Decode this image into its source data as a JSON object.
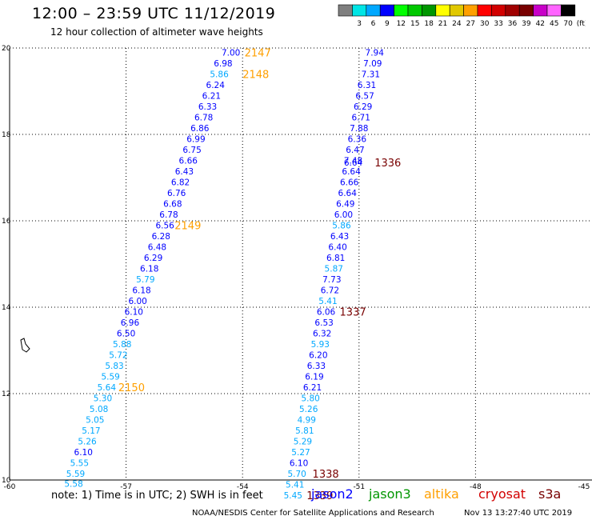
{
  "header": {
    "title": "12:00 – 23:59 UTC 11/12/2019",
    "subtitle": "12 hour collection of altimeter wave heights"
  },
  "color_scale": {
    "unit": "(ft)",
    "bins": [
      {
        "label": "",
        "color": "#7f7f7f"
      },
      {
        "label": "3",
        "color": "#00e5e5"
      },
      {
        "label": "6",
        "color": "#00a8ff"
      },
      {
        "label": "9",
        "color": "#0000ff"
      },
      {
        "label": "12",
        "color": "#00ff00"
      },
      {
        "label": "15",
        "color": "#00c800"
      },
      {
        "label": "18",
        "color": "#009600"
      },
      {
        "label": "21",
        "color": "#ffff00"
      },
      {
        "label": "24",
        "color": "#e1c800"
      },
      {
        "label": "27",
        "color": "#ffa000"
      },
      {
        "label": "30",
        "color": "#ff0000"
      },
      {
        "label": "33",
        "color": "#d20000"
      },
      {
        "label": "36",
        "color": "#a00000"
      },
      {
        "label": "39",
        "color": "#780000"
      },
      {
        "label": "42",
        "color": "#c800c8"
      },
      {
        "label": "45",
        "color": "#ff64ff"
      },
      {
        "label": "70",
        "color": "#000000"
      }
    ]
  },
  "chart_data": {
    "type": "scatter",
    "title": "12:00 – 23:59 UTC 11/12/2019",
    "subtitle": "12 hour collection of altimeter wave heights",
    "xlim": [
      -60,
      -45
    ],
    "ylim": [
      10,
      20
    ],
    "xticks": [
      -60,
      -57,
      -54,
      -51,
      -48,
      -45
    ],
    "yticks": [
      10,
      12,
      14,
      16,
      18,
      20
    ],
    "grid": true,
    "swh_unit": "ft",
    "tracks": [
      {
        "name": "A",
        "points": [
          {
            "lon": -54.3,
            "lat": 19.9,
            "swh": "7.00"
          },
          {
            "lon": -54.5,
            "lat": 19.65,
            "swh": "6.98"
          },
          {
            "lon": -54.6,
            "lat": 19.4,
            "swh": "5.86"
          },
          {
            "lon": -54.7,
            "lat": 19.15,
            "swh": "6.24"
          },
          {
            "lon": -54.8,
            "lat": 18.9,
            "swh": "6.21"
          },
          {
            "lon": -54.9,
            "lat": 18.65,
            "swh": "6.33"
          },
          {
            "lon": -55.0,
            "lat": 18.4,
            "swh": "6.78"
          },
          {
            "lon": -55.1,
            "lat": 18.15,
            "swh": "6.86"
          },
          {
            "lon": -55.2,
            "lat": 17.9,
            "swh": "6.99"
          },
          {
            "lon": -55.3,
            "lat": 17.65,
            "swh": "6.75"
          },
          {
            "lon": -55.4,
            "lat": 17.4,
            "swh": "6.66"
          },
          {
            "lon": -55.5,
            "lat": 17.15,
            "swh": "6.43"
          },
          {
            "lon": -55.6,
            "lat": 16.9,
            "swh": "6.82"
          },
          {
            "lon": -55.7,
            "lat": 16.65,
            "swh": "6.76"
          },
          {
            "lon": -55.8,
            "lat": 16.4,
            "swh": "6.68"
          },
          {
            "lon": -55.9,
            "lat": 16.15,
            "swh": "6.78"
          },
          {
            "lon": -56.0,
            "lat": 15.9,
            "swh": "6.56"
          },
          {
            "lon": -56.1,
            "lat": 15.65,
            "swh": "6.28"
          },
          {
            "lon": -56.2,
            "lat": 15.4,
            "swh": "6.48"
          },
          {
            "lon": -56.3,
            "lat": 15.15,
            "swh": "6.29"
          },
          {
            "lon": -56.4,
            "lat": 14.9,
            "swh": "6.18"
          },
          {
            "lon": -56.5,
            "lat": 14.65,
            "swh": "5.79"
          },
          {
            "lon": -56.6,
            "lat": 14.4,
            "swh": "6.18"
          },
          {
            "lon": -56.7,
            "lat": 14.15,
            "swh": "6.00"
          },
          {
            "lon": -56.8,
            "lat": 13.9,
            "swh": "6.10"
          },
          {
            "lon": -56.9,
            "lat": 13.65,
            "swh": "6.96"
          },
          {
            "lon": -57.0,
            "lat": 13.4,
            "swh": "6.50"
          },
          {
            "lon": -57.1,
            "lat": 13.15,
            "swh": "5.88"
          },
          {
            "lon": -57.2,
            "lat": 12.9,
            "swh": "5.72"
          },
          {
            "lon": -57.3,
            "lat": 12.65,
            "swh": "5.83"
          },
          {
            "lon": -57.4,
            "lat": 12.4,
            "swh": "5.59"
          },
          {
            "lon": -57.5,
            "lat": 12.15,
            "swh": "5.64"
          },
          {
            "lon": -57.6,
            "lat": 11.9,
            "swh": "5.30"
          },
          {
            "lon": -57.7,
            "lat": 11.65,
            "swh": "5.08"
          },
          {
            "lon": -57.8,
            "lat": 11.4,
            "swh": "5.05"
          },
          {
            "lon": -57.9,
            "lat": 11.15,
            "swh": "5.17"
          },
          {
            "lon": -58.0,
            "lat": 10.9,
            "swh": "5.26"
          },
          {
            "lon": -58.1,
            "lat": 10.65,
            "swh": "6.10"
          },
          {
            "lon": -58.2,
            "lat": 10.4,
            "swh": "5.55"
          },
          {
            "lon": -58.3,
            "lat": 10.15,
            "swh": "5.59"
          },
          {
            "lon": -58.35,
            "lat": 9.92,
            "swh": "5.58"
          }
        ]
      },
      {
        "name": "B",
        "points": [
          {
            "lon": -50.6,
            "lat": 19.9,
            "swh": "7.94"
          },
          {
            "lon": -50.65,
            "lat": 19.65,
            "swh": "7.09"
          },
          {
            "lon": -50.7,
            "lat": 19.4,
            "swh": "7.31"
          },
          {
            "lon": -50.8,
            "lat": 19.15,
            "swh": "6.31"
          },
          {
            "lon": -50.85,
            "lat": 18.9,
            "swh": "6.57"
          },
          {
            "lon": -50.9,
            "lat": 18.65,
            "swh": "6.29"
          },
          {
            "lon": -50.95,
            "lat": 18.4,
            "swh": "6.71"
          },
          {
            "lon": -51.0,
            "lat": 18.15,
            "swh": "7.88"
          },
          {
            "lon": -51.05,
            "lat": 17.9,
            "swh": "6.36"
          },
          {
            "lon": -51.1,
            "lat": 17.65,
            "swh": "6.47"
          },
          {
            "lon": -51.15,
            "lat": 17.4,
            "swh": "7.48"
          },
          {
            "lon": -51.15,
            "lat": 17.35,
            "swh": "6.64"
          },
          {
            "lon": -51.2,
            "lat": 17.15,
            "swh": "6.64"
          },
          {
            "lon": -51.25,
            "lat": 16.9,
            "swh": "6.66"
          },
          {
            "lon": -51.3,
            "lat": 16.65,
            "swh": "6.64"
          },
          {
            "lon": -51.35,
            "lat": 16.4,
            "swh": "6.49"
          },
          {
            "lon": -51.4,
            "lat": 16.15,
            "swh": "6.00"
          },
          {
            "lon": -51.45,
            "lat": 15.9,
            "swh": "5.86"
          },
          {
            "lon": -51.5,
            "lat": 15.65,
            "swh": "6.43"
          },
          {
            "lon": -51.55,
            "lat": 15.4,
            "swh": "6.40"
          },
          {
            "lon": -51.6,
            "lat": 15.15,
            "swh": "6.81"
          },
          {
            "lon": -51.65,
            "lat": 14.9,
            "swh": "5.87"
          },
          {
            "lon": -51.7,
            "lat": 14.65,
            "swh": "7.73"
          },
          {
            "lon": -51.75,
            "lat": 14.4,
            "swh": "6.72"
          },
          {
            "lon": -51.8,
            "lat": 14.15,
            "swh": "5.41"
          },
          {
            "lon": -51.85,
            "lat": 13.9,
            "swh": "6.06"
          },
          {
            "lon": -51.9,
            "lat": 13.65,
            "swh": "6.53"
          },
          {
            "lon": -51.95,
            "lat": 13.4,
            "swh": "6.32"
          },
          {
            "lon": -52.0,
            "lat": 13.15,
            "swh": "5.93"
          },
          {
            "lon": -52.05,
            "lat": 12.9,
            "swh": "6.20"
          },
          {
            "lon": -52.1,
            "lat": 12.65,
            "swh": "6.33"
          },
          {
            "lon": -52.15,
            "lat": 12.4,
            "swh": "6.19"
          },
          {
            "lon": -52.2,
            "lat": 12.15,
            "swh": "6.21"
          },
          {
            "lon": -52.25,
            "lat": 11.9,
            "swh": "5.80"
          },
          {
            "lon": -52.3,
            "lat": 11.65,
            "swh": "5.26"
          },
          {
            "lon": -52.35,
            "lat": 11.4,
            "swh": "4.99"
          },
          {
            "lon": -52.4,
            "lat": 11.15,
            "swh": "5.81"
          },
          {
            "lon": -52.45,
            "lat": 10.9,
            "swh": "5.29"
          },
          {
            "lon": -52.5,
            "lat": 10.65,
            "swh": "5.27"
          },
          {
            "lon": -52.55,
            "lat": 10.4,
            "swh": "6.10"
          },
          {
            "lon": -52.6,
            "lat": 10.15,
            "swh": "5.70"
          },
          {
            "lon": -52.65,
            "lat": 9.9,
            "swh": "5.41"
          },
          {
            "lon": -52.7,
            "lat": 9.65,
            "swh": "5.45"
          }
        ]
      }
    ],
    "pass_labels": [
      {
        "text": "2147",
        "lon": -53.95,
        "lat": 19.9,
        "color": "#ffa000"
      },
      {
        "text": "2148",
        "lon": -54.0,
        "lat": 19.4,
        "color": "#ffa000"
      },
      {
        "text": "2149",
        "lon": -55.75,
        "lat": 15.9,
        "color": "#ffa000"
      },
      {
        "text": "2150",
        "lon": -57.2,
        "lat": 12.15,
        "color": "#ffa000"
      },
      {
        "text": "1336",
        "lon": -50.6,
        "lat": 17.35,
        "color": "#780000"
      },
      {
        "text": "1337",
        "lon": -51.5,
        "lat": 13.9,
        "color": "#780000"
      },
      {
        "text": "1338",
        "lon": -52.2,
        "lat": 10.15,
        "color": "#780000"
      },
      {
        "text": "1339",
        "lon": -52.35,
        "lat": 9.65,
        "color": "#780000"
      }
    ]
  },
  "footer": {
    "note": "note: 1) Time is in UTC; 2) SWH is in feet",
    "satellites": [
      {
        "label": "jason2",
        "color": "#0000ff"
      },
      {
        "label": "jason3",
        "color": "#009600"
      },
      {
        "label": "altika",
        "color": "#ffa000"
      },
      {
        "label": "cryosat",
        "color": "#d20000"
      },
      {
        "label": "s3a",
        "color": "#780000"
      }
    ],
    "credit": "NOAA/NESDIS Center for Satellite Applications and Research",
    "timestamp": "Nov 13 13:27:40 UTC 2019"
  }
}
